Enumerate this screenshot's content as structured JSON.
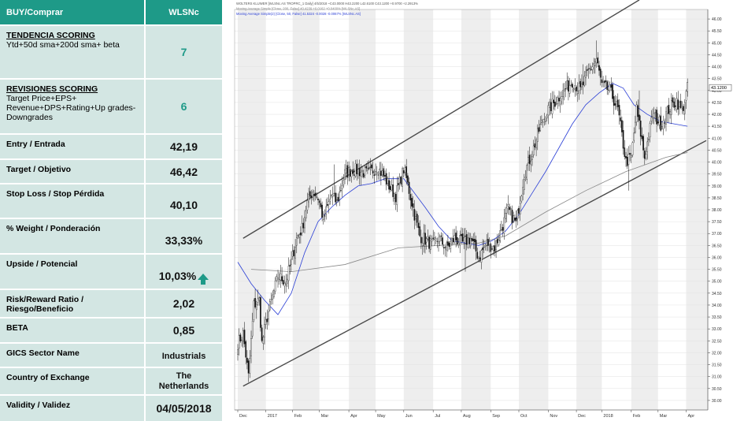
{
  "table": {
    "header": {
      "label": "BUY/Comprar",
      "value": "WLSNc"
    },
    "rows": [
      {
        "title": "TENDENCIA SCORING",
        "label": "Ytd+50d sma+200d sma+ beta",
        "value": "7"
      },
      {
        "title": "REVISIONES SCORING",
        "label": "Target Price+EPS+ Revenue+DPS+Rating+Up grades-Downgrades",
        "value": "6"
      },
      {
        "label": "Entry / Entrada",
        "value": "42,19"
      },
      {
        "label": "Target / Objetivo",
        "value": "46,42"
      },
      {
        "label": "Stop Loss / Stop Pérdida",
        "value": "40,10"
      },
      {
        "label": "% Weight / Ponderación",
        "value": "33,33%"
      },
      {
        "label": "Upside / Potencial",
        "value": "10,03%"
      },
      {
        "label": "Risk/Reward Ratio / Riesgo/Beneficio",
        "value": "2,02"
      },
      {
        "label": "BETA",
        "value": "0,85"
      },
      {
        "label": "GICS Sector Name",
        "value": "Industrials"
      },
      {
        "label": "Country of Exchange",
        "value": "The Netherlands"
      },
      {
        "label": "Validity / Validez",
        "value": "04/05/2018"
      }
    ]
  },
  "chart_data": {
    "type": "candlestick",
    "legend": [
      "WOLTERS KLUWER [WLSNc.AS TROPRC_1 Daily] 4/5/2018 ~C43.0000 H43.2200 L42.6100 C43.1200 +0.9700 +2.2913%",
      "Moving Average Simple [Close, 200, False] 40.4239 +0.0162 +0.0400% [WLSNc.AS]",
      "Moving Average Simple(2) [Close, 50, False] 41.5324 -0.0028 -0.0067% [WLSNc.AS]"
    ],
    "colors": {
      "up": "#ffffff",
      "down": "#111111",
      "ma200": "#888888",
      "ma50": "#2b3fd6",
      "channel": "#4a4a4a",
      "band": "#eeeeee"
    },
    "x_labels": [
      "Dec",
      "2017",
      "Feb",
      "Mar",
      "Apr",
      "May",
      "Jun",
      "Jul",
      "Aug",
      "Sep",
      "Oct",
      "Nov",
      "Dec",
      "2018",
      "Feb",
      "Mar",
      "Apr"
    ],
    "month_index": [
      0,
      21,
      41,
      61,
      83,
      103,
      124,
      146,
      167,
      189,
      210,
      232,
      253,
      272,
      294,
      314,
      335
    ],
    "y_ticks": [
      30.0,
      30.5,
      31.0,
      31.5,
      32.0,
      32.5,
      33.0,
      33.5,
      34.0,
      34.5,
      35.0,
      35.5,
      36.0,
      36.5,
      37.0,
      37.5,
      38.0,
      38.5,
      39.0,
      39.5,
      40.0,
      40.5,
      41.0,
      41.5,
      42.0,
      42.5,
      43.0,
      43.5,
      44.0,
      44.5,
      45.0,
      45.5,
      46.0
    ],
    "y_tick_labels": [
      "30.00",
      "30.50",
      "31.00",
      "31.50",
      "32.00",
      "32.50",
      "33.00",
      "33.50",
      "34.00",
      "34.50",
      "35.00",
      "35.50",
      "36.00",
      "36.50",
      "37.00",
      "37.50",
      "38.00",
      "38.50",
      "39.00",
      "39.50",
      "40.00",
      "40.50",
      "41.00",
      "41.50",
      "42.00",
      "42.50",
      "43.00",
      "43.50",
      "44.00",
      "44.50",
      "45.00",
      "45.50",
      "46.00"
    ],
    "ylim": [
      29.6,
      46.4
    ],
    "last_price": {
      "value": 43.12,
      "label": "43.1200"
    },
    "anchors": [
      [
        0,
        32.4
      ],
      [
        4,
        32.8
      ],
      [
        8,
        31.0
      ],
      [
        12,
        34.0
      ],
      [
        16,
        34.2
      ],
      [
        18,
        32.4
      ],
      [
        22,
        33.5
      ],
      [
        30,
        35.2
      ],
      [
        36,
        35.0
      ],
      [
        40,
        35.8
      ],
      [
        44,
        36.8
      ],
      [
        48,
        37.2
      ],
      [
        52,
        38.3
      ],
      [
        56,
        38.8
      ],
      [
        60,
        38.5
      ],
      [
        64,
        37.6
      ],
      [
        70,
        38.6
      ],
      [
        74,
        38.3
      ],
      [
        80,
        39.5
      ],
      [
        86,
        39.7
      ],
      [
        92,
        39.6
      ],
      [
        98,
        39.5
      ],
      [
        104,
        39.8
      ],
      [
        108,
        39.5
      ],
      [
        114,
        38.9
      ],
      [
        118,
        38.6
      ],
      [
        124,
        39.7
      ],
      [
        126,
        39.3
      ],
      [
        132,
        37.8
      ],
      [
        136,
        36.9
      ],
      [
        146,
        36.5
      ],
      [
        150,
        36.8
      ],
      [
        156,
        36.4
      ],
      [
        162,
        36.8
      ],
      [
        168,
        36.6
      ],
      [
        174,
        36.8
      ],
      [
        180,
        36.0
      ],
      [
        186,
        36.6
      ],
      [
        192,
        36.4
      ],
      [
        197,
        37.2
      ],
      [
        202,
        38.0
      ],
      [
        208,
        37.4
      ],
      [
        214,
        39.5
      ],
      [
        220,
        40.4
      ],
      [
        226,
        41.5
      ],
      [
        232,
        42.2
      ],
      [
        238,
        42.6
      ],
      [
        244,
        43.0
      ],
      [
        250,
        43.4
      ],
      [
        256,
        43.0
      ],
      [
        262,
        43.8
      ],
      [
        268,
        44.3
      ],
      [
        272,
        43.2
      ],
      [
        278,
        43.0
      ],
      [
        284,
        42.2
      ],
      [
        290,
        40.0
      ],
      [
        294,
        40.2
      ],
      [
        298,
        42.2
      ],
      [
        304,
        40.2
      ],
      [
        310,
        42.0
      ],
      [
        316,
        41.6
      ],
      [
        322,
        42.2
      ],
      [
        328,
        42.6
      ],
      [
        332,
        42.1
      ],
      [
        336,
        43.1
      ]
    ],
    "spikes": [
      [
        72,
        39.9
      ],
      [
        170,
        35.4
      ],
      [
        258,
        44.1
      ],
      [
        268,
        45.1
      ],
      [
        292,
        38.8
      ],
      [
        300,
        43.0
      ]
    ],
    "ma200": [
      [
        10,
        35.5
      ],
      [
        40,
        35.4
      ],
      [
        80,
        35.7
      ],
      [
        120,
        36.4
      ],
      [
        150,
        36.5
      ],
      [
        180,
        36.6
      ],
      [
        200,
        36.9
      ],
      [
        230,
        37.9
      ],
      [
        260,
        38.8
      ],
      [
        290,
        39.6
      ],
      [
        320,
        40.2
      ],
      [
        336,
        40.4
      ]
    ],
    "ma50": [
      [
        0,
        35.8
      ],
      [
        10,
        34.9
      ],
      [
        20,
        34.2
      ],
      [
        30,
        33.6
      ],
      [
        40,
        34.5
      ],
      [
        50,
        36.2
      ],
      [
        60,
        37.5
      ],
      [
        70,
        38.1
      ],
      [
        80,
        38.6
      ],
      [
        90,
        39.0
      ],
      [
        100,
        39.1
      ],
      [
        110,
        39.3
      ],
      [
        124,
        39.3
      ],
      [
        140,
        38.1
      ],
      [
        150,
        37.3
      ],
      [
        160,
        36.7
      ],
      [
        170,
        36.6
      ],
      [
        180,
        36.5
      ],
      [
        190,
        36.7
      ],
      [
        200,
        37.1
      ],
      [
        210,
        37.8
      ],
      [
        220,
        38.7
      ],
      [
        230,
        39.6
      ],
      [
        240,
        40.6
      ],
      [
        250,
        41.6
      ],
      [
        260,
        42.4
      ],
      [
        270,
        42.9
      ],
      [
        280,
        43.3
      ],
      [
        288,
        43.1
      ],
      [
        296,
        42.4
      ],
      [
        306,
        42.0
      ],
      [
        316,
        41.7
      ],
      [
        326,
        41.6
      ],
      [
        336,
        41.5
      ]
    ],
    "channel_upper": [
      [
        4,
        36.8
      ],
      [
        300,
        46.8
      ]
    ],
    "channel_lower": [
      [
        4,
        30.6
      ],
      [
        350,
        40.9
      ]
    ]
  }
}
